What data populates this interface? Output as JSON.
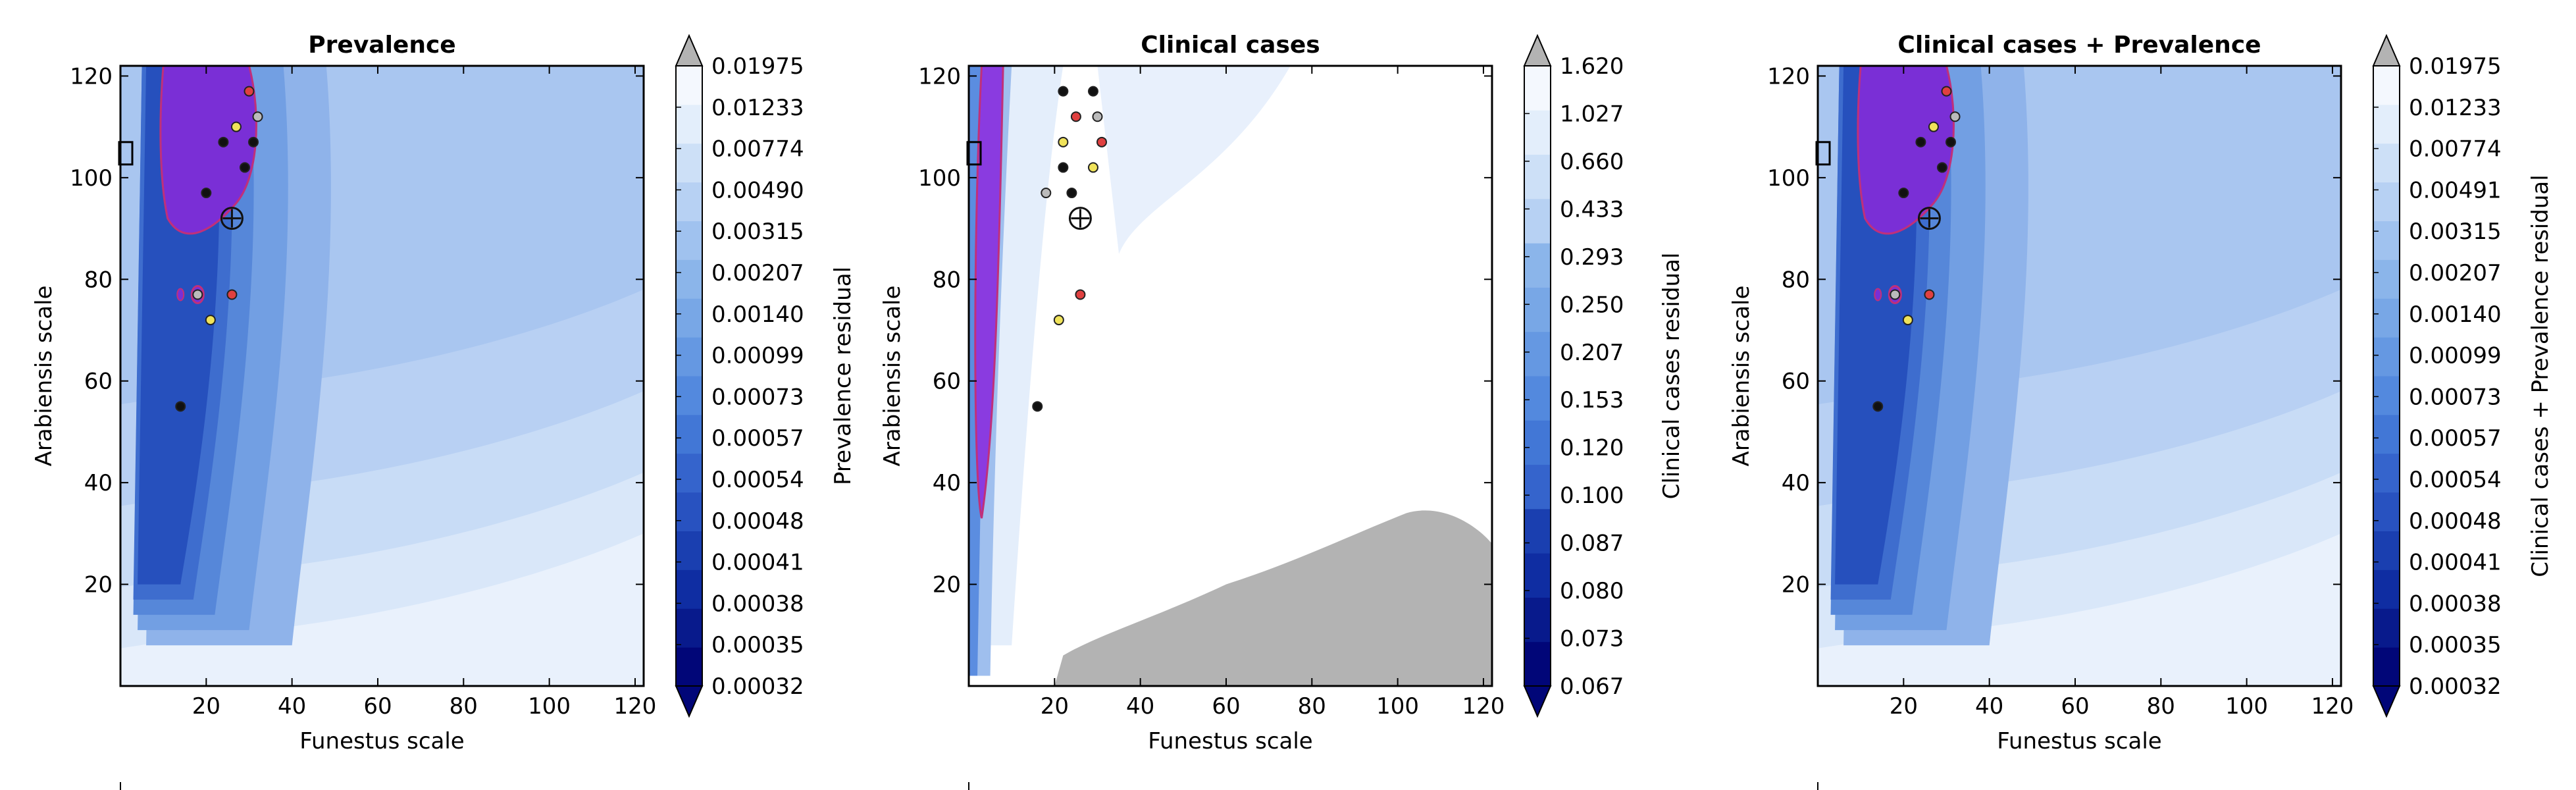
{
  "chart_data": [
    {
      "type": "heatmap",
      "title": "Prevalence",
      "xlabel": "Funestus scale",
      "ylabel": "Arabiensis scale",
      "xlim": [
        0,
        122
      ],
      "ylim": [
        0,
        122
      ],
      "xticks": [
        20,
        40,
        60,
        80,
        100,
        120
      ],
      "yticks": [
        20,
        40,
        60,
        80,
        100,
        120
      ],
      "colorbar_label": "Prevalence residual",
      "colorbar_levels": [
        "0.00032",
        "0.00035",
        "0.00038",
        "0.00041",
        "0.00048",
        "0.00054",
        "0.00057",
        "0.00073",
        "0.00099",
        "0.00140",
        "0.00207",
        "0.00315",
        "0.00490",
        "0.00774",
        "0.01233",
        "0.01975"
      ],
      "best_fit_marker": [
        26,
        92
      ],
      "highlight_region": "purple contour near Funestus 10-30, Arabiensis 60-122",
      "sample_points": [
        [
          14,
          55
        ],
        [
          21,
          72
        ],
        [
          26,
          77
        ],
        [
          18,
          77
        ],
        [
          20,
          97
        ],
        [
          24,
          107
        ],
        [
          27,
          110
        ],
        [
          30,
          117
        ],
        [
          32,
          112
        ],
        [
          29,
          102
        ],
        [
          31,
          107
        ]
      ]
    },
    {
      "type": "heatmap",
      "title": "Clinical cases",
      "xlabel": "Funestus scale",
      "ylabel": "Arabiensis scale",
      "xlim": [
        0,
        122
      ],
      "ylim": [
        0,
        122
      ],
      "xticks": [
        20,
        40,
        60,
        80,
        100,
        120
      ],
      "yticks": [
        20,
        40,
        60,
        80,
        100,
        120
      ],
      "colorbar_label": "Clinical cases residual",
      "colorbar_levels": [
        "0.067",
        "0.073",
        "0.080",
        "0.087",
        "0.100",
        "0.120",
        "0.153",
        "0.207",
        "0.250",
        "0.293",
        "0.433",
        "0.660",
        "1.027",
        "1.620"
      ],
      "best_fit_marker": [
        26,
        92
      ],
      "highlight_region": "purple contour along left edge, Funestus 0-8",
      "sample_points": [
        [
          16,
          55
        ],
        [
          21,
          72
        ],
        [
          26,
          77
        ],
        [
          18,
          97
        ],
        [
          24,
          97
        ],
        [
          22,
          102
        ],
        [
          22,
          107
        ],
        [
          25,
          112
        ],
        [
          30,
          112
        ],
        [
          29,
          117
        ],
        [
          22,
          117
        ],
        [
          29,
          102
        ],
        [
          31,
          107
        ]
      ]
    },
    {
      "type": "heatmap",
      "title": "Clinical cases + Prevalence",
      "xlabel": "Funestus scale",
      "ylabel": "Arabiensis scale",
      "xlim": [
        0,
        122
      ],
      "ylim": [
        0,
        122
      ],
      "xticks": [
        20,
        40,
        60,
        80,
        100,
        120
      ],
      "yticks": [
        20,
        40,
        60,
        80,
        100,
        120
      ],
      "colorbar_label": "Clinical cases + Prevalence residual",
      "colorbar_levels": [
        "0.00032",
        "0.00035",
        "0.00038",
        "0.00041",
        "0.00048",
        "0.00054",
        "0.00057",
        "0.00073",
        "0.00099",
        "0.00140",
        "0.00207",
        "0.00315",
        "0.00491",
        "0.00774",
        "0.01233",
        "0.01975"
      ],
      "best_fit_marker": [
        26,
        92
      ],
      "highlight_region": "purple contour near Funestus 10-30, Arabiensis 60-122",
      "sample_points": [
        [
          14,
          55
        ],
        [
          21,
          72
        ],
        [
          26,
          77
        ],
        [
          18,
          77
        ],
        [
          20,
          97
        ],
        [
          24,
          107
        ],
        [
          27,
          110
        ],
        [
          30,
          117
        ],
        [
          32,
          112
        ],
        [
          29,
          102
        ],
        [
          31,
          107
        ]
      ]
    }
  ]
}
